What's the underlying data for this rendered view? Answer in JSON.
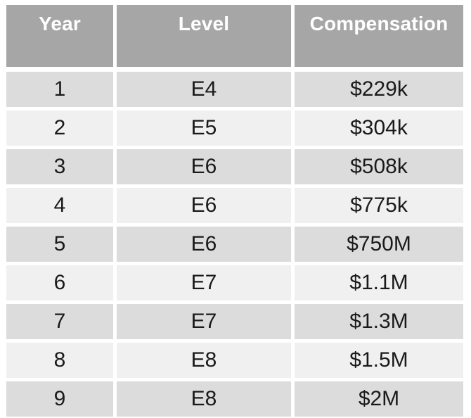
{
  "table": {
    "title": "compensation-by-year-table",
    "columns": [
      "Year",
      "Level",
      "Compensation"
    ],
    "rows": [
      [
        "1",
        "E4",
        "$229k"
      ],
      [
        "2",
        "E5",
        "$304k"
      ],
      [
        "3",
        "E6",
        "$508k"
      ],
      [
        "4",
        "E6",
        "$775k"
      ],
      [
        "5",
        "E6",
        "$750M"
      ],
      [
        "6",
        "E7",
        "$1.1M"
      ],
      [
        "7",
        "E7",
        "$1.3M"
      ],
      [
        "8",
        "E8",
        "$1.5M"
      ],
      [
        "9",
        "E8",
        "$2M"
      ]
    ]
  },
  "colors": {
    "header_bg": "#a6a6a6",
    "header_text": "#ffffff",
    "row_dark_bg": "#dcdcdc",
    "row_light_bg": "#f0f0f0",
    "body_text": "#1a1a1a",
    "gutter": "#ffffff"
  }
}
